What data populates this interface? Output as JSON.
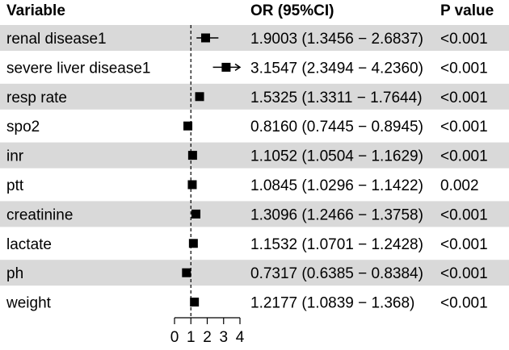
{
  "header": {
    "variable": "Variable",
    "or_ci": "OR (95%CI)",
    "p_value": "P value"
  },
  "colors": {
    "stripe": "#d9d9d9",
    "marker": "#000000",
    "reference_line": "#000000"
  },
  "chart_data": {
    "type": "forest",
    "xlim": [
      0,
      4
    ],
    "reference_value": 1,
    "ticks": [
      0,
      1,
      2,
      3,
      4
    ],
    "tick_labels": [
      "0",
      "1",
      "2",
      "3",
      "4"
    ],
    "rows": [
      {
        "variable": "renal disease1",
        "or": 1.9003,
        "lower": 1.3456,
        "upper": 2.6837,
        "or_ci_text": "1.9003 (1.3456 − 2.6837)",
        "p_text": "<0.001",
        "striped": true
      },
      {
        "variable": "severe liver disease1",
        "or": 3.1547,
        "lower": 2.3494,
        "upper": 4.236,
        "or_ci_text": "3.1547 (2.3494 − 4.2360)",
        "p_text": "<0.001",
        "striped": false
      },
      {
        "variable": "resp rate",
        "or": 1.5325,
        "lower": 1.3311,
        "upper": 1.7644,
        "or_ci_text": "1.5325 (1.3311 − 1.7644)",
        "p_text": "<0.001",
        "striped": true
      },
      {
        "variable": "spo2",
        "or": 0.816,
        "lower": 0.7445,
        "upper": 0.8945,
        "or_ci_text": "0.8160 (0.7445 − 0.8945)",
        "p_text": "<0.001",
        "striped": false
      },
      {
        "variable": "inr",
        "or": 1.1052,
        "lower": 1.0504,
        "upper": 1.1629,
        "or_ci_text": "1.1052 (1.0504 − 1.1629)",
        "p_text": "<0.001",
        "striped": true
      },
      {
        "variable": "ptt",
        "or": 1.0845,
        "lower": 1.0296,
        "upper": 1.1422,
        "or_ci_text": "1.0845 (1.0296 − 1.1422)",
        "p_text": "0.002",
        "striped": false
      },
      {
        "variable": "creatinine",
        "or": 1.3096,
        "lower": 1.2466,
        "upper": 1.3758,
        "or_ci_text": "1.3096 (1.2466 − 1.3758)",
        "p_text": "<0.001",
        "striped": true
      },
      {
        "variable": "lactate",
        "or": 1.1532,
        "lower": 1.0701,
        "upper": 1.2428,
        "or_ci_text": "1.1532 (1.0701 − 1.2428)",
        "p_text": "<0.001",
        "striped": false
      },
      {
        "variable": "ph",
        "or": 0.7317,
        "lower": 0.6385,
        "upper": 0.8384,
        "or_ci_text": "0.7317 (0.6385 − 0.8384)",
        "p_text": "<0.001",
        "striped": true
      },
      {
        "variable": "weight",
        "or": 1.2177,
        "lower": 1.0839,
        "upper": 1.368,
        "or_ci_text": "1.2177 (1.0839 − 1.368)",
        "p_text": "<0.001",
        "striped": false
      }
    ]
  }
}
